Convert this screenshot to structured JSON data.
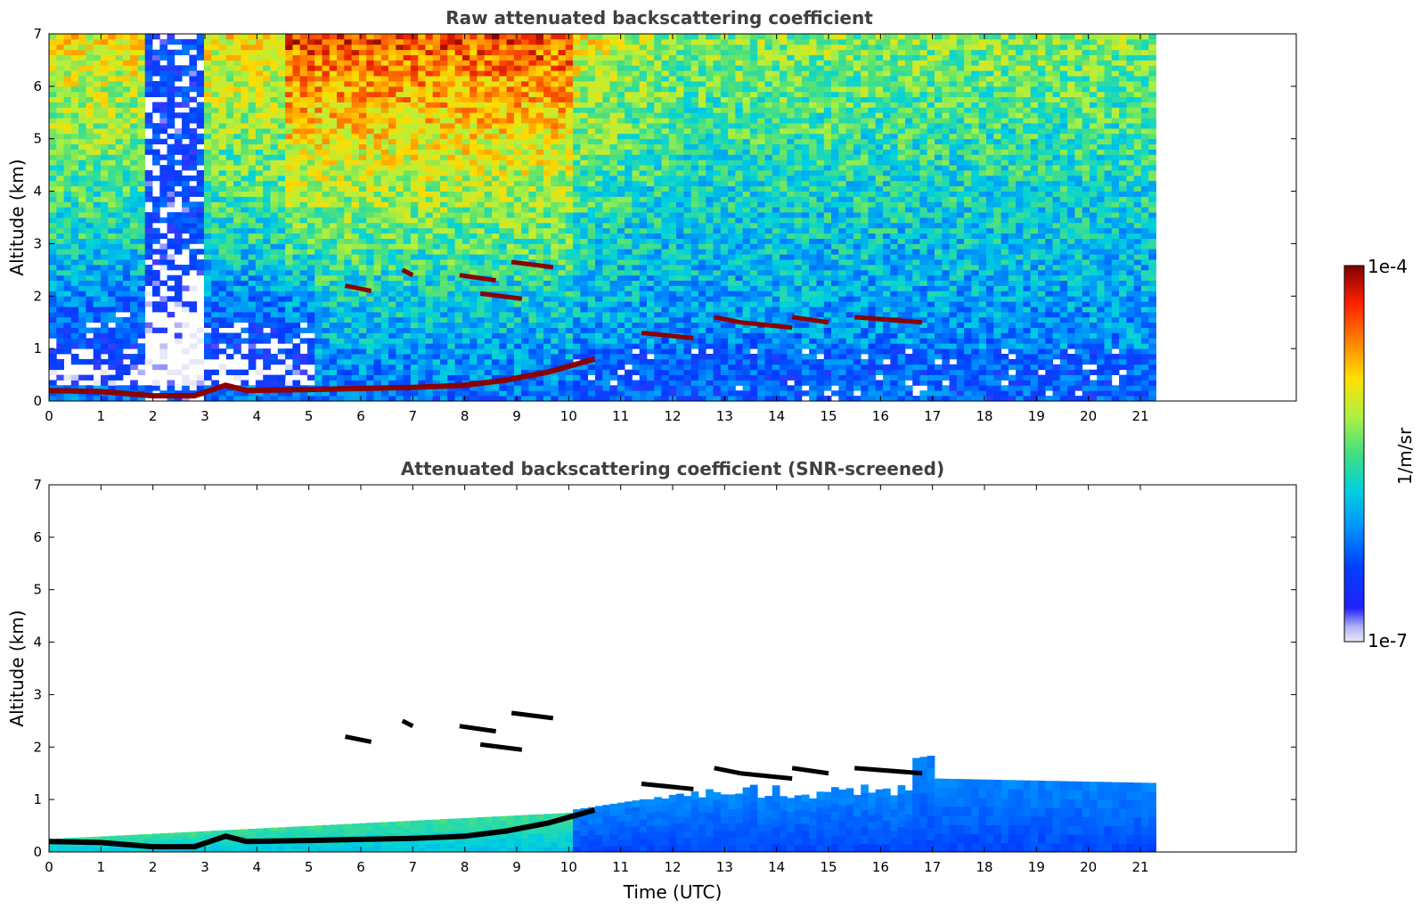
{
  "chart_data": [
    {
      "type": "heatmap",
      "title": "Raw attenuated backscattering coefficient",
      "xlabel": "",
      "ylabel": "Altitude (km)",
      "xlim": [
        0,
        24
      ],
      "ylim": [
        0,
        7
      ],
      "x_ticks": [
        "0",
        "1",
        "2",
        "3",
        "4",
        "5",
        "6",
        "7",
        "8",
        "9",
        "10",
        "11",
        "12",
        "13",
        "14",
        "15",
        "16",
        "17",
        "18",
        "19",
        "20",
        "21"
      ],
      "y_ticks": [
        "0",
        "1",
        "2",
        "3",
        "4",
        "5",
        "6",
        "7"
      ],
      "data_end_time": 21.3,
      "features": {
        "surface_layer": [
          [
            0,
            0.2
          ],
          [
            1,
            0.18
          ],
          [
            2,
            0.1
          ],
          [
            2.8,
            0.1
          ],
          [
            3.4,
            0.3
          ],
          [
            3.8,
            0.2
          ],
          [
            5,
            0.22
          ],
          [
            6,
            0.24
          ],
          [
            7,
            0.26
          ],
          [
            8,
            0.3
          ],
          [
            8.8,
            0.4
          ],
          [
            9.6,
            0.55
          ],
          [
            10.5,
            0.8
          ]
        ],
        "cloud_segments": [
          {
            "t0": 5.7,
            "t1": 6.2,
            "alt": 2.2
          },
          {
            "t0": 6.8,
            "t1": 7.0,
            "alt": 2.5
          },
          {
            "t0": 7.9,
            "t1": 8.6,
            "alt": 2.4
          },
          {
            "t0": 8.3,
            "t1": 9.1,
            "alt": 2.05
          },
          {
            "t0": 8.9,
            "t1": 9.7,
            "alt": 2.65
          },
          {
            "t0": 11.4,
            "t1": 12.4,
            "alt": 1.3
          },
          {
            "t0": 12.8,
            "t1": 13.3,
            "alt": 1.6
          },
          {
            "t0": 13.3,
            "t1": 14.3,
            "alt": 1.5
          },
          {
            "t0": 14.3,
            "t1": 15.0,
            "alt": 1.6
          },
          {
            "t0": 15.5,
            "t1": 16.8,
            "alt": 1.6
          }
        ]
      }
    },
    {
      "type": "heatmap",
      "title": "Attenuated backscattering coefficient (SNR-screened)",
      "xlabel": "Time (UTC)",
      "ylabel": "Altitude (km)",
      "xlim": [
        0,
        24
      ],
      "ylim": [
        0,
        7
      ],
      "x_ticks": [
        "0",
        "1",
        "2",
        "3",
        "4",
        "5",
        "6",
        "7",
        "8",
        "9",
        "10",
        "11",
        "12",
        "13",
        "14",
        "15",
        "16",
        "17",
        "18",
        "19",
        "20",
        "21"
      ],
      "y_ticks": [
        "0",
        "1",
        "2",
        "3",
        "4",
        "5",
        "6",
        "7"
      ],
      "data_end_time": 21.3
    }
  ],
  "colorbar": {
    "max_label": "1e-4",
    "min_label": "1e-7",
    "unit_label": "1/m/sr",
    "scale": "log",
    "range": [
      1e-07,
      0.0001
    ]
  },
  "colors": {
    "background": "#ffffff",
    "title": "#404040",
    "cloud_core": "#8b0000",
    "screened_core": "#000000"
  }
}
